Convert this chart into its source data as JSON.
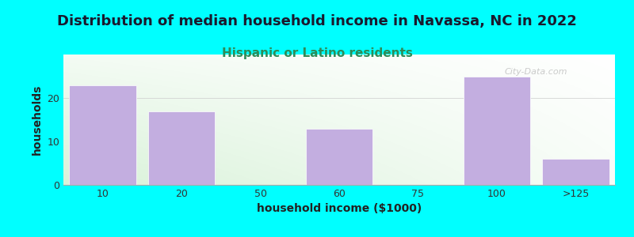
{
  "title": "Distribution of median household income in Navassa, NC in 2022",
  "subtitle": "Hispanic or Latino residents",
  "xlabel": "household income ($1000)",
  "ylabel": "households",
  "background_outer": "#00FFFF",
  "bar_color": "#c3aee0",
  "bar_edge_color": "#ffffff",
  "categories": [
    "10",
    "20",
    "50",
    "60",
    "75",
    "100",
    ">125"
  ],
  "values": [
    23,
    17,
    0,
    13,
    0,
    25,
    6
  ],
  "ylim": [
    0,
    30
  ],
  "yticks": [
    0,
    10,
    20
  ],
  "title_fontsize": 13,
  "subtitle_fontsize": 11,
  "title_color": "#1a1a2e",
  "subtitle_color": "#2e8b57",
  "axis_label_fontsize": 10,
  "tick_fontsize": 9,
  "watermark": "City-Data.com",
  "gradient_top_left": "#d8eed8",
  "gradient_bottom_right": "#f8f8ff"
}
